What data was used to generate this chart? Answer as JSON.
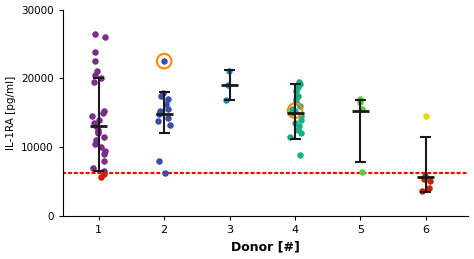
{
  "xlabel": "Donor [#]",
  "ylabel": "IL-1RA [pg/ml]",
  "ylim": [
    0,
    30000
  ],
  "yticks": [
    0,
    10000,
    20000,
    30000
  ],
  "red_dotted_line": 6200,
  "donor1": {
    "color": "#7B2D8B",
    "mean": 13000,
    "sd_low": 6500,
    "sd_high": 20000,
    "points": [
      26500,
      26000,
      23800,
      22500,
      21000,
      20500,
      20000,
      19500,
      15200,
      15000,
      14500,
      14000,
      13500,
      13000,
      12500,
      12200,
      12000,
      11500,
      11000,
      10500,
      10000,
      9500,
      9000,
      8000,
      7000,
      6500
    ],
    "red_points": [
      5600,
      6100
    ]
  },
  "donor2": {
    "color": "#3B4EA6",
    "mean": 14800,
    "sd_low": 12000,
    "sd_high": 18000,
    "points": [
      17800,
      17500,
      17000,
      16200,
      15500,
      15200,
      14800,
      14200,
      13800,
      13200,
      8000,
      6200
    ],
    "orange_point": 22500
  },
  "donor3": {
    "color": "#1A8FB5",
    "mean": 19000,
    "sd_low": 16800,
    "sd_high": 21200,
    "points": [
      21000,
      19000,
      16800
    ]
  },
  "donor4": {
    "color": "#1AAF87",
    "mean": 15000,
    "sd_low": 11200,
    "sd_high": 19200,
    "points": [
      19500,
      19200,
      18800,
      18200,
      17500,
      17000,
      16500,
      16000,
      15500,
      15000,
      14500,
      14000,
      13500,
      13000,
      12500,
      12000,
      11500,
      8800
    ],
    "orange_point": 15300
  },
  "donor5": {
    "color": "#5DC840",
    "mean": 15200,
    "sd_low": 7800,
    "sd_high": 16800,
    "points": [
      17000,
      16500,
      15500,
      6400
    ]
  },
  "donor6": {
    "color": "#CC2200",
    "mean": 5600,
    "sd_low": 3500,
    "sd_high": 11500,
    "red_points": [
      5800,
      5400,
      5100,
      4000,
      3600
    ],
    "yellow_point": 14500
  },
  "colors": {
    "purple": "#7B2D8B",
    "blue": "#3B4EA6",
    "teal": "#1A8FB5",
    "green": "#1AAF87",
    "lgreen": "#5DC840",
    "red": "#CC2200",
    "yellow": "#E8D800",
    "orange": "#FF8800",
    "errbar": "#1a1a1a"
  }
}
